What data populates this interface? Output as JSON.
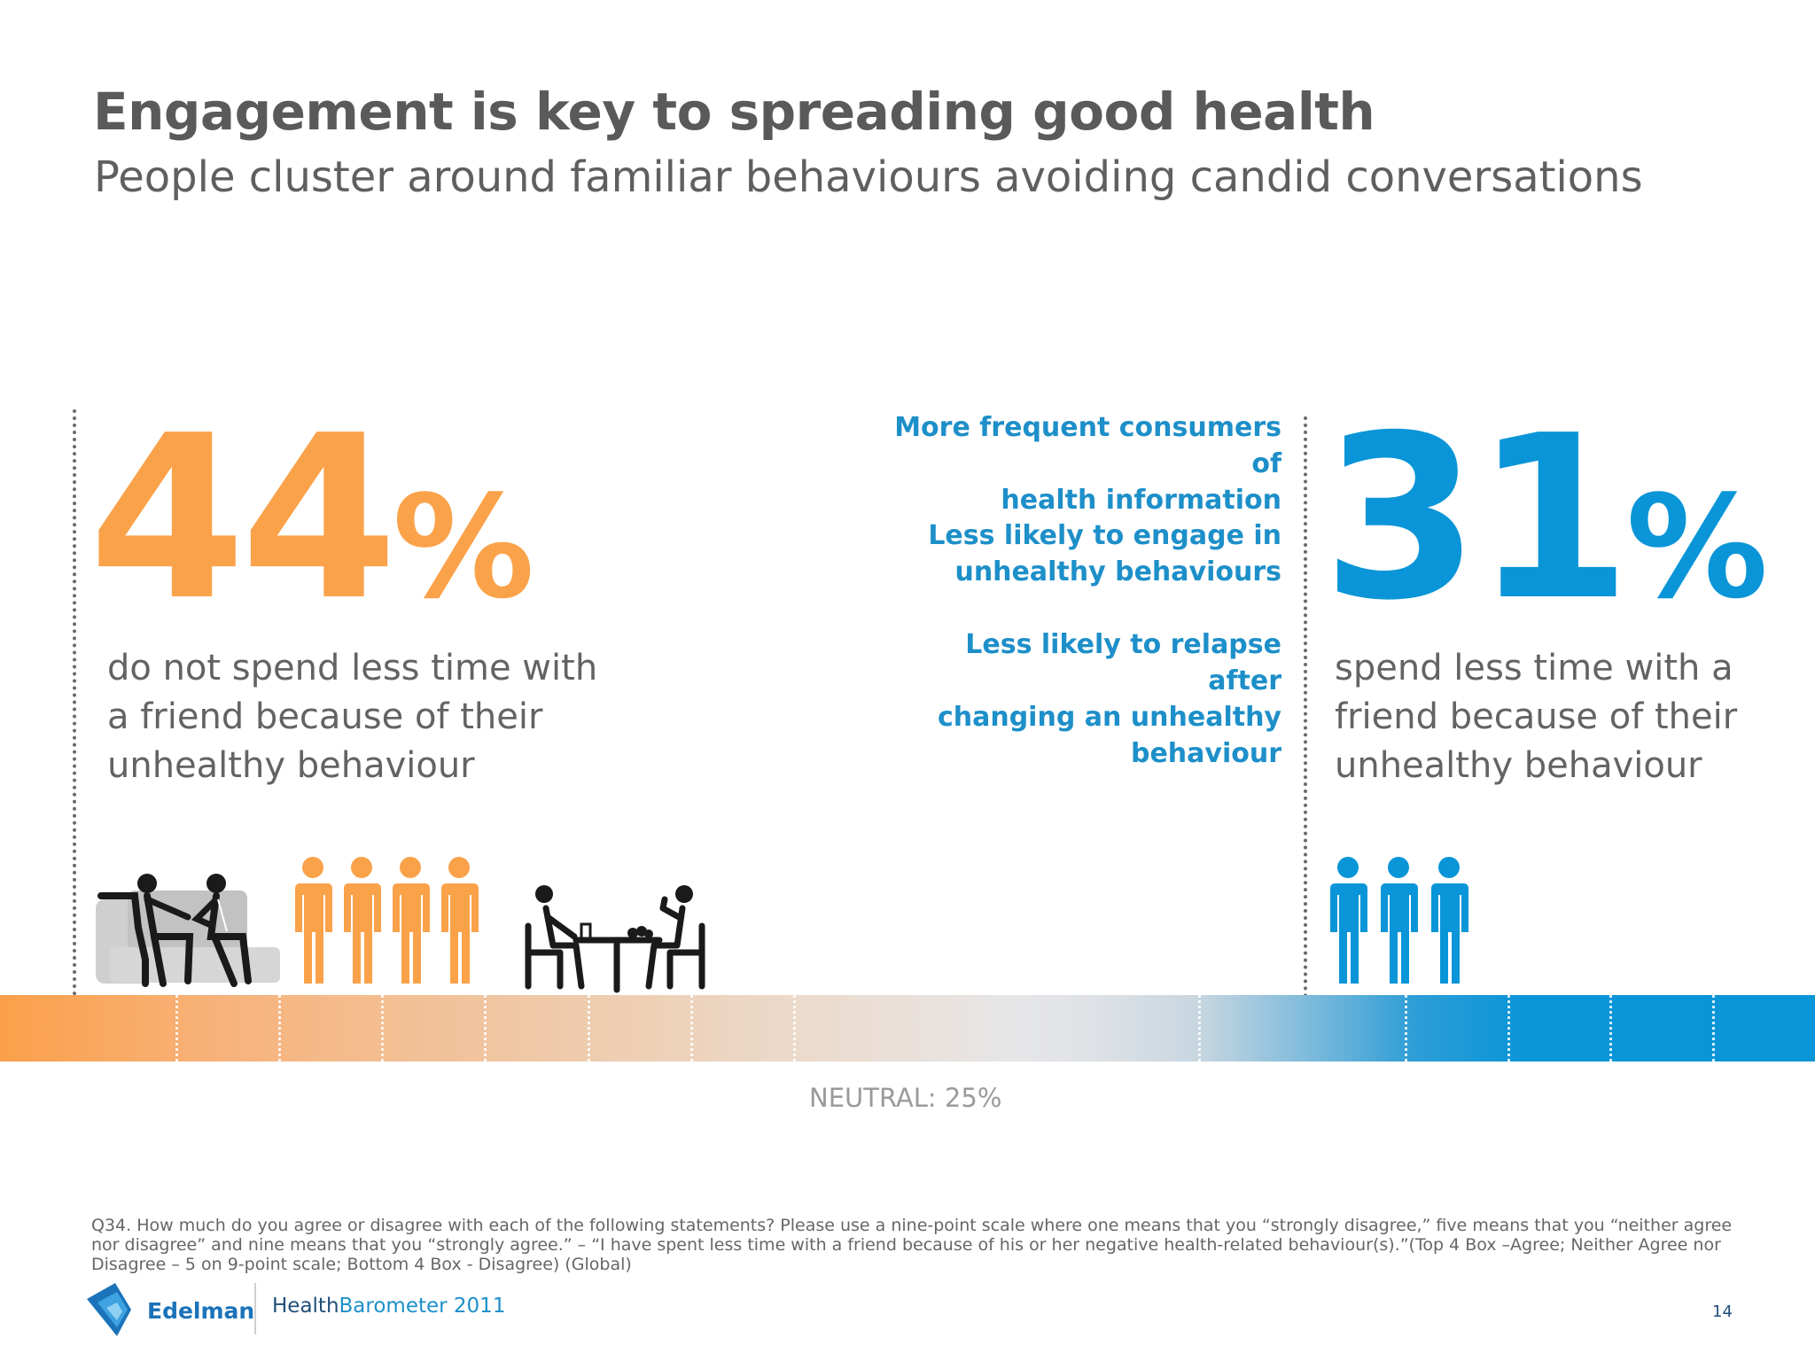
{
  "header": {
    "title": "Engagement is key to spreading good health",
    "subtitle": "People cluster around familiar behaviours avoiding candid conversations"
  },
  "left_stat": {
    "number": "44",
    "percent_sign": "%",
    "description_lines": [
      "do not spend less time with",
      "a friend because of their",
      "unhealthy behaviour"
    ]
  },
  "right_stat": {
    "number": "31",
    "percent_sign": "%",
    "description_lines": [
      "spend less time with a",
      "friend because of their",
      "unhealthy behaviour"
    ]
  },
  "benefits": [
    {
      "lines": [
        "More frequent consumers of",
        "health information"
      ]
    },
    {
      "lines": [
        "Less likely to engage in",
        "unhealthy behaviours"
      ]
    },
    {
      "lines": [
        "Less likely to relapse after",
        "changing an unhealthy",
        "behaviour"
      ]
    }
  ],
  "scale": {
    "neutral_label": "NEUTRAL: 25%",
    "colors": {
      "disagree": "#faa24a",
      "agree": "#0a95d8",
      "neutral": "#e6e6e8"
    }
  },
  "icons": {
    "left_people_count": 4,
    "right_people_count": 3,
    "names": [
      "sofa-couple-icon",
      "person-icon",
      "table-couple-icon"
    ]
  },
  "footnote": "Q34. How much do you agree or disagree with each of the following statements? Please use a nine-point scale where one means that you “strongly disagree,” five means that you “neither agree nor disagree” and nine means that you “strongly agree.” – “I have spent less time with a friend because of his or her negative health-related behaviour(s).”(Top 4 Box –Agree; Neither Agree nor Disagree – 5 on 9-point scale; Bottom 4 Box - Disagree) (Global)",
  "footer": {
    "logo_text": "Edelman",
    "product_part1": "Health",
    "product_part2": "Barometer 2011",
    "page_number": "14"
  }
}
